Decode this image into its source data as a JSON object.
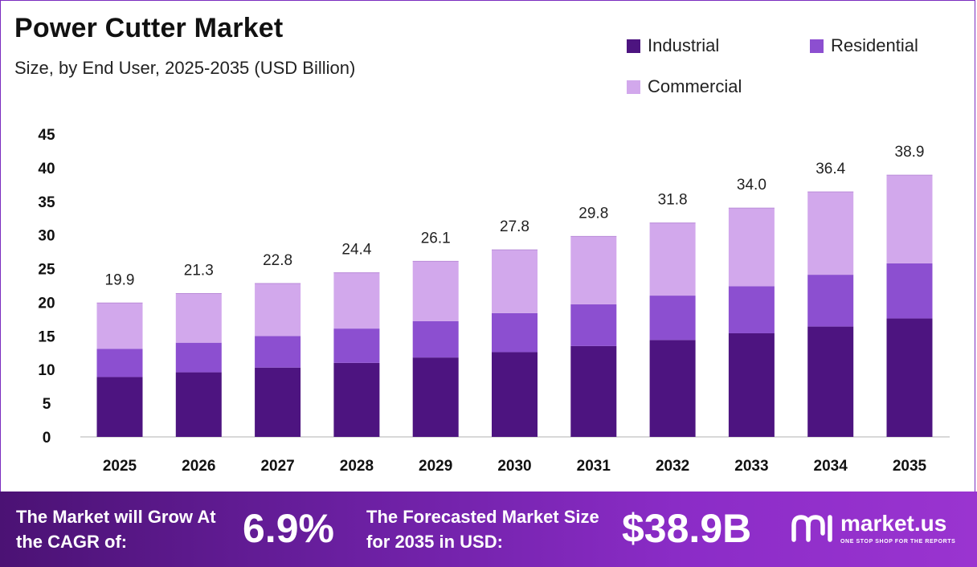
{
  "header": {
    "title": "Power Cutter Market",
    "subtitle": "Size, by End User, 2025-2035 (USD Billion)"
  },
  "colors": {
    "industrial": "#4d1480",
    "residential": "#8c4fd0",
    "commercial": "#d2a8ec",
    "axis": "#cccccc",
    "border": "#7b2cbf"
  },
  "chart_data": {
    "type": "bar",
    "stacked": true,
    "title": "Power Cutter Market",
    "subtitle": "Size, by End User, 2025-2035 (USD Billion)",
    "xlabel": "",
    "ylabel": "",
    "ylim": [
      0,
      45
    ],
    "yticks": [
      0,
      5,
      10,
      15,
      20,
      25,
      30,
      35,
      40,
      45
    ],
    "grid": false,
    "legend_position": "top-right",
    "categories": [
      "2025",
      "2026",
      "2027",
      "2028",
      "2029",
      "2030",
      "2031",
      "2032",
      "2033",
      "2034",
      "2035"
    ],
    "series": [
      {
        "name": "Industrial",
        "color": "#4d1480",
        "values": [
          8.9,
          9.6,
          10.3,
          11.0,
          11.8,
          12.6,
          13.5,
          14.4,
          15.4,
          16.4,
          17.6
        ]
      },
      {
        "name": "Residential",
        "color": "#8c4fd0",
        "values": [
          4.2,
          4.4,
          4.7,
          5.1,
          5.4,
          5.8,
          6.2,
          6.6,
          7.0,
          7.7,
          8.2
        ]
      },
      {
        "name": "Commercial",
        "color": "#d2a8ec",
        "values": [
          6.8,
          7.3,
          7.8,
          8.3,
          8.9,
          9.4,
          10.1,
          10.8,
          11.6,
          12.3,
          13.1
        ]
      }
    ],
    "totals": [
      "19.9",
      "21.3",
      "22.8",
      "24.4",
      "26.1",
      "27.8",
      "29.8",
      "31.8",
      "34.0",
      "36.4",
      "38.9"
    ]
  },
  "footer": {
    "cagr_label": "The Market will Grow At the CAGR of:",
    "cagr_value": "6.9%",
    "forecast_label": "The Forecasted Market Size for 2035 in USD:",
    "forecast_value": "$38.9B"
  },
  "brand": {
    "name": "market.us",
    "tagline": "ONE STOP SHOP FOR THE REPORTS",
    "icon": "market-us-logo-icon"
  }
}
